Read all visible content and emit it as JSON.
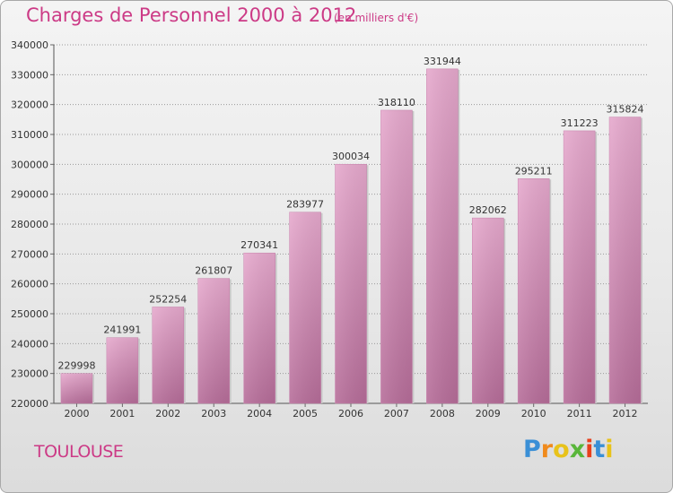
{
  "chart_data": {
    "type": "bar",
    "title": "Charges de Personnel 2000 à 2012",
    "subtitle": "(en milliers d'€)",
    "categories": [
      "2000",
      "2001",
      "2002",
      "2003",
      "2004",
      "2005",
      "2006",
      "2007",
      "2008",
      "2009",
      "2010",
      "2011",
      "2012"
    ],
    "values": [
      229998,
      241991,
      252254,
      261807,
      270341,
      283977,
      300034,
      318110,
      331944,
      282062,
      295211,
      311223,
      315824
    ],
    "ylim": [
      220000,
      340000
    ],
    "yticks": [
      220000,
      230000,
      240000,
      250000,
      260000,
      270000,
      280000,
      290000,
      300000,
      310000,
      320000,
      330000,
      340000
    ],
    "grid": true,
    "bar_color": "#d98ab8"
  },
  "location": "TOULOUSE",
  "brand": {
    "letters": [
      "P",
      "r",
      "o",
      "x",
      "i",
      "t",
      "i"
    ],
    "colors": [
      "#3a8fd6",
      "#f08a1c",
      "#e8c21a",
      "#59b63a",
      "#e8401c",
      "#3a8fd6",
      "#e8c21a"
    ]
  }
}
